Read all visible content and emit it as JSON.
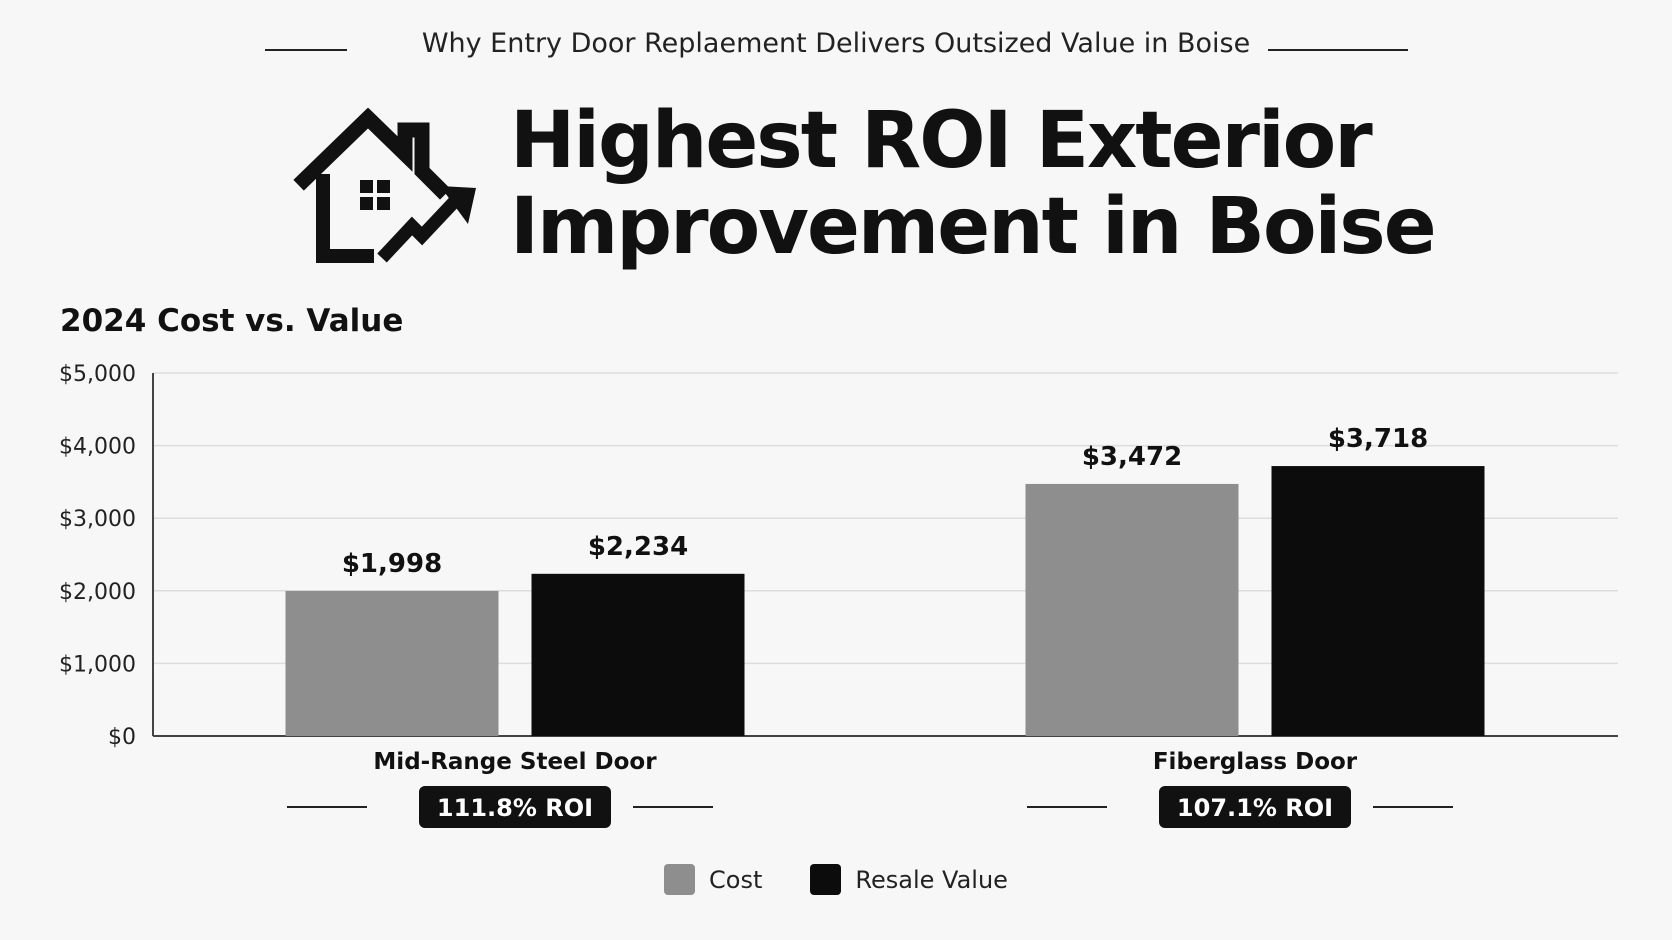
{
  "header": {
    "kicker": "Why Entry Door Replaement Delivers Outsized Value in Boise",
    "headline_line1": "Highest ROI Exterior",
    "headline_line2": "Improvement in Boise"
  },
  "colors": {
    "cost": "#8e8e8e",
    "resale": "#0c0c0c",
    "grid": "#dddddd",
    "badge": "#111111"
  },
  "icons": {
    "headline_icon": "house-with-rising-arrow-icon"
  },
  "chart_data": {
    "type": "bar",
    "title": "2024 Cost vs. Value",
    "categories": [
      "Mid-Range Steel Door",
      "Fiberglass Door"
    ],
    "series": [
      {
        "name": "Cost",
        "values": [
          1998,
          3472
        ],
        "labels": [
          "$1,998",
          "$3,472"
        ]
      },
      {
        "name": "Resale Value",
        "values": [
          2234,
          3718
        ],
        "labels": [
          "$2,234",
          "$3,718"
        ]
      }
    ],
    "roi_badges": [
      "111.8% ROI",
      "107.1% ROI"
    ],
    "ylim": [
      0,
      5000
    ],
    "yticks": [
      0,
      1000,
      2000,
      3000,
      4000,
      5000
    ],
    "ytick_labels": [
      "$0",
      "$1,000",
      "$2,000",
      "$3,000",
      "$4,000",
      "$5,000"
    ],
    "grid": true,
    "legend_position": "bottom-center"
  }
}
